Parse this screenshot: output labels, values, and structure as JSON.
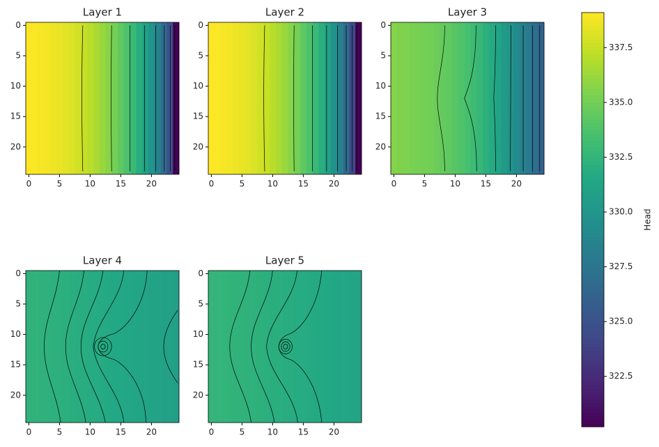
{
  "chart_data": [
    {
      "type": "heatmap",
      "title": "Layer 1",
      "xlim": [
        -0.5,
        24.5
      ],
      "ylim": [
        24.5,
        -0.5
      ],
      "xticks": [
        0,
        5,
        10,
        15,
        20
      ],
      "yticks": [
        0,
        5,
        10,
        15,
        20
      ],
      "values": [
        339.1,
        339.0,
        338.9,
        338.8,
        338.7,
        338.5,
        338.3,
        338.1,
        337.8,
        337.5,
        337.1,
        336.7,
        336.2,
        335.7,
        335.1,
        334.4,
        333.7,
        332.9,
        332.0,
        331.0,
        329.9,
        328.6,
        327.0,
        324.8,
        320.3
      ]
    },
    {
      "type": "heatmap",
      "title": "Layer 2",
      "xlim": [
        -0.5,
        24.5
      ],
      "ylim": [
        24.5,
        -0.5
      ],
      "xticks": [
        0,
        5,
        10,
        15,
        20
      ],
      "yticks": [
        0,
        5,
        10,
        15,
        20
      ],
      "values": [
        339.1,
        339.0,
        338.9,
        338.8,
        338.7,
        338.5,
        338.3,
        338.1,
        337.8,
        337.5,
        337.1,
        336.7,
        336.2,
        335.7,
        335.1,
        334.4,
        333.7,
        332.9,
        332.0,
        331.0,
        329.8,
        328.5,
        326.8,
        324.5,
        320.2
      ]
    },
    {
      "type": "heatmap",
      "title": "Layer 3",
      "xlim": [
        -0.5,
        24.5
      ],
      "ylim": [
        24.5,
        -0.5
      ],
      "xticks": [
        0,
        5,
        10,
        15,
        20
      ],
      "yticks": [
        0,
        5,
        10,
        15,
        20
      ],
      "values": [
        335.6,
        335.5,
        335.4,
        335.3,
        335.2,
        335.1,
        335.0,
        334.8,
        334.6,
        334.4,
        334.1,
        333.8,
        333.5,
        333.1,
        332.7,
        332.2,
        331.7,
        331.1,
        330.5,
        329.9,
        329.2,
        328.5,
        327.8,
        327.0,
        326.2
      ]
    },
    {
      "type": "heatmap",
      "title": "Layer 4",
      "xlim": [
        -0.5,
        24.5
      ],
      "ylim": [
        24.5,
        -0.5
      ],
      "xticks": [
        0,
        5,
        10,
        15,
        20
      ],
      "yticks": [
        0,
        5,
        10,
        15,
        20
      ],
      "values": [
        332.4,
        332.35,
        332.3,
        332.25,
        332.2,
        332.15,
        332.1,
        332.0,
        331.95,
        331.9,
        331.8,
        331.75,
        331.7,
        331.6,
        331.55,
        331.5,
        331.4,
        331.35,
        331.3,
        331.2,
        331.15,
        331.1,
        331.0,
        330.95,
        330.9
      ]
    },
    {
      "type": "heatmap",
      "title": "Layer 5",
      "xlim": [
        -0.5,
        24.5
      ],
      "ylim": [
        24.5,
        -0.5
      ],
      "xticks": [
        0,
        5,
        10,
        15,
        20
      ],
      "yticks": [
        0,
        5,
        10,
        15,
        20
      ],
      "values": [
        332.6,
        332.55,
        332.5,
        332.45,
        332.4,
        332.35,
        332.3,
        332.25,
        332.2,
        332.1,
        332.05,
        332.0,
        331.95,
        331.9,
        331.8,
        331.75,
        331.7,
        331.65,
        331.6,
        331.5,
        331.45,
        331.4,
        331.35,
        331.3,
        331.2
      ]
    }
  ],
  "colorbar": {
    "label": "Head",
    "colormap": "viridis",
    "lim": [
      320.2,
      339.1
    ],
    "ticks": [
      322.5,
      {
        "value": 325.0,
        "label": "325.0"
      },
      327.5,
      {
        "value": 330.0,
        "label": "330.0"
      },
      332.5,
      {
        "value": 335.0,
        "label": "335.0"
      },
      337.5
    ]
  }
}
